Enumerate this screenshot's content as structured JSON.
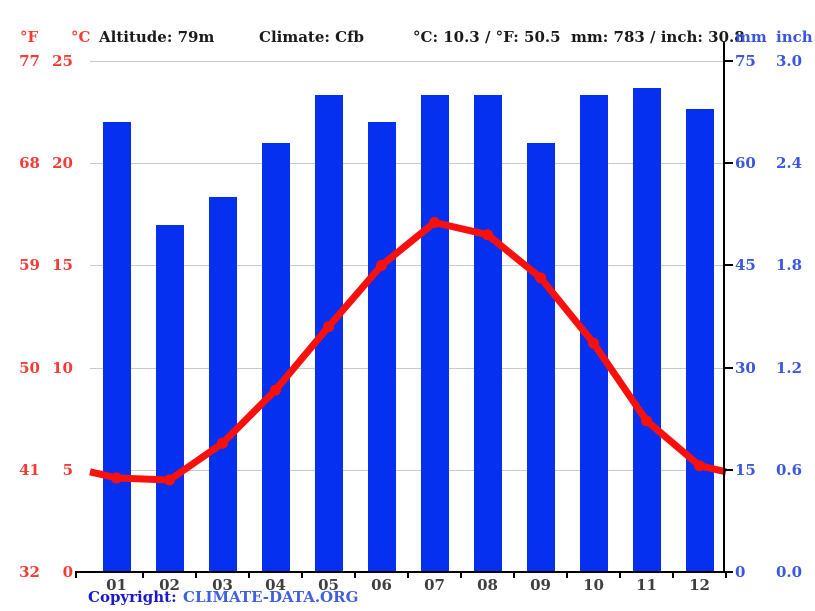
{
  "header": {
    "f_label": "°F",
    "c_label": "°C",
    "altitude": "Altitude: 79m",
    "climate": "Climate: Cfb",
    "temp_summary": "°C: 10.3 / °F: 50.5",
    "precip_summary": "mm: 783 / inch: 30.8",
    "mm_label": "mm",
    "inch_label": "inch"
  },
  "footer": {
    "copyright_label": "Copyright:",
    "link_text": "CLIMATE-DATA.ORG"
  },
  "colors": {
    "bar_blue": "#0630f0",
    "line_red": "#f90f0b",
    "red_axis_text": "#f53b36",
    "blue_axis_text": "#3b57e0",
    "grid": "#c8c8c8",
    "axis": "#000000",
    "month_text": "#3f3f3f",
    "copyright": "#1a1acc",
    "link": "#4060e0"
  },
  "chart_data": {
    "type": "bar",
    "subtype": "climograph (precipitation bars + temperature line)",
    "categories": [
      "01",
      "02",
      "03",
      "04",
      "05",
      "06",
      "07",
      "08",
      "09",
      "10",
      "11",
      "12"
    ],
    "series": [
      {
        "name": "precipitation_mm",
        "type": "bar",
        "values": [
          66,
          51,
          55,
          63,
          70,
          66,
          70,
          70,
          63,
          70,
          71,
          68
        ]
      },
      {
        "name": "temperature_c",
        "type": "line",
        "values": [
          4.6,
          4.5,
          6.3,
          8.9,
          12.0,
          15.0,
          17.1,
          16.5,
          14.4,
          11.2,
          7.4,
          5.2
        ],
        "edge_left": 4.9,
        "edge_right": 4.9
      }
    ],
    "title": "",
    "xlabel": "",
    "y_left_c": {
      "label": "°C",
      "min": 0,
      "max": 25,
      "ticks": [
        "25",
        "20",
        "15",
        "10",
        "5",
        "0"
      ]
    },
    "y_left_f": {
      "label": "°F",
      "ticks": [
        "77",
        "68",
        "59",
        "50",
        "41",
        "32"
      ]
    },
    "y_right_mm": {
      "label": "mm",
      "min": 0,
      "max": 75,
      "ticks": [
        "75",
        "60",
        "45",
        "30",
        "15",
        "0"
      ]
    },
    "y_right_inch": {
      "label": "inch",
      "ticks": [
        "3.0",
        "2.4",
        "1.8",
        "1.2",
        "0.6",
        "0.0"
      ]
    },
    "grid": true,
    "legend": "none",
    "annual_mean_temp_c": 10.3,
    "annual_precip_mm": 783
  }
}
